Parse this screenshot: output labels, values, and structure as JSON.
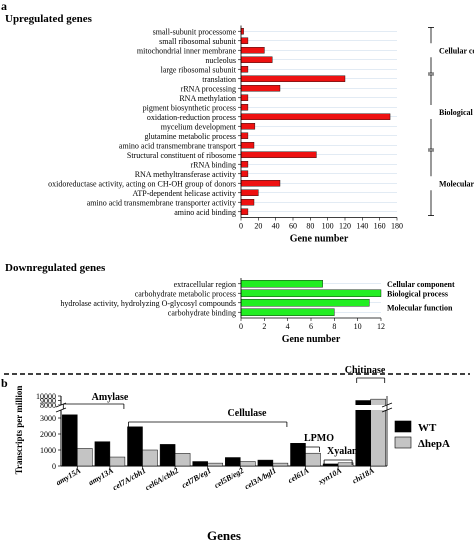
{
  "panel_labels": {
    "a": "a",
    "b": "b"
  },
  "chart_data": [
    {
      "type": "bar",
      "orientation": "horizontal",
      "title": "Upregulated genes",
      "xlabel": "Gene number",
      "xlim": [
        0,
        180
      ],
      "xticks": [
        "0",
        "20",
        "40",
        "60",
        "80",
        "100",
        "120",
        "140",
        "160",
        "180"
      ],
      "bar_color": "#ee1111",
      "categories": [
        "small-subunit processome",
        "small ribosomal subunit",
        "mitochondrial inner membrane",
        "nucleolus",
        "large ribosomal subunit",
        "translation",
        "rRNA processing",
        "RNA methylation",
        "pigment biosynthetic process",
        "oxidation-reduction process",
        "mycelium development",
        "glutamine metabolic process",
        "amino acid transmembrane transport",
        "Structural constituent of ribosome",
        "rRNA binding",
        "RNA methyltransferase activity",
        "oxidoreductase activity, acting on CH-OH group of donors",
        "ATP-dependent helicase activity",
        "amino acid transmembrane transporter activity",
        "amino acid binding"
      ],
      "values": [
        3,
        8,
        27,
        36,
        8,
        120,
        45,
        8,
        8,
        172,
        16,
        8,
        15,
        87,
        8,
        8,
        45,
        20,
        15,
        8
      ],
      "groups": [
        {
          "name": "Cellular component",
          "from": 0,
          "to": 4
        },
        {
          "name": "Biological process",
          "from": 5,
          "to": 12
        },
        {
          "name": "Molecular function",
          "from": 13,
          "to": 19
        }
      ]
    },
    {
      "type": "bar",
      "orientation": "horizontal",
      "title": "Downregulated genes",
      "xlabel": "Gene number",
      "xlim": [
        0,
        12
      ],
      "xticks": [
        "0",
        "2",
        "4",
        "6",
        "8",
        "10",
        "12"
      ],
      "bar_color": "#22ee22",
      "categories": [
        "extracellular region",
        "carbohydrate metabolic process",
        "hydrolase activity, hydrolyzing O-glycosyl compounds",
        "carbohydrate binding"
      ],
      "values": [
        7,
        12,
        11,
        8
      ],
      "groups": [
        {
          "name": "Cellular component",
          "row": 0
        },
        {
          "name": "Biological process",
          "row": 1
        },
        {
          "name": "Molecular function",
          "row": 2.5
        }
      ]
    },
    {
      "type": "bar",
      "orientation": "vertical",
      "xlabel": "Genes",
      "ylabel": "Transcripts per million",
      "ylim": [
        0,
        10000
      ],
      "axis_break": [
        3500,
        8000
      ],
      "yticks": [
        "0",
        "1000",
        "2000",
        "3000",
        "8000",
        "9000",
        "10000"
      ],
      "categories": [
        "amy15A",
        "amy13A",
        "cel7A/cbh1",
        "cel6A/cbh2",
        "cel7B/eg1",
        "cel5B/eg2",
        "cel3A/bgl1",
        "cel61A",
        "xyn10A",
        "chi18A"
      ],
      "series": [
        {
          "name": "WT",
          "color": "#000000",
          "values": [
            3200,
            1520,
            2450,
            1350,
            280,
            530,
            370,
            1420,
            130,
            9000
          ]
        },
        {
          "name": "ΔhepA",
          "color": "#c4c4c4",
          "values": [
            1100,
            560,
            1000,
            790,
            180,
            280,
            180,
            800,
            200,
            9300
          ]
        }
      ],
      "annotations": [
        {
          "text": "Amylase",
          "from": 0,
          "to": 1
        },
        {
          "text": "Cellulase",
          "from": 2,
          "to": 6
        },
        {
          "text": "LPMO",
          "from": 7,
          "to": 7
        },
        {
          "text": "Xyalanase",
          "from": 8,
          "to": 8
        },
        {
          "text": "Chitinase",
          "from": 9,
          "to": 9
        }
      ]
    }
  ]
}
